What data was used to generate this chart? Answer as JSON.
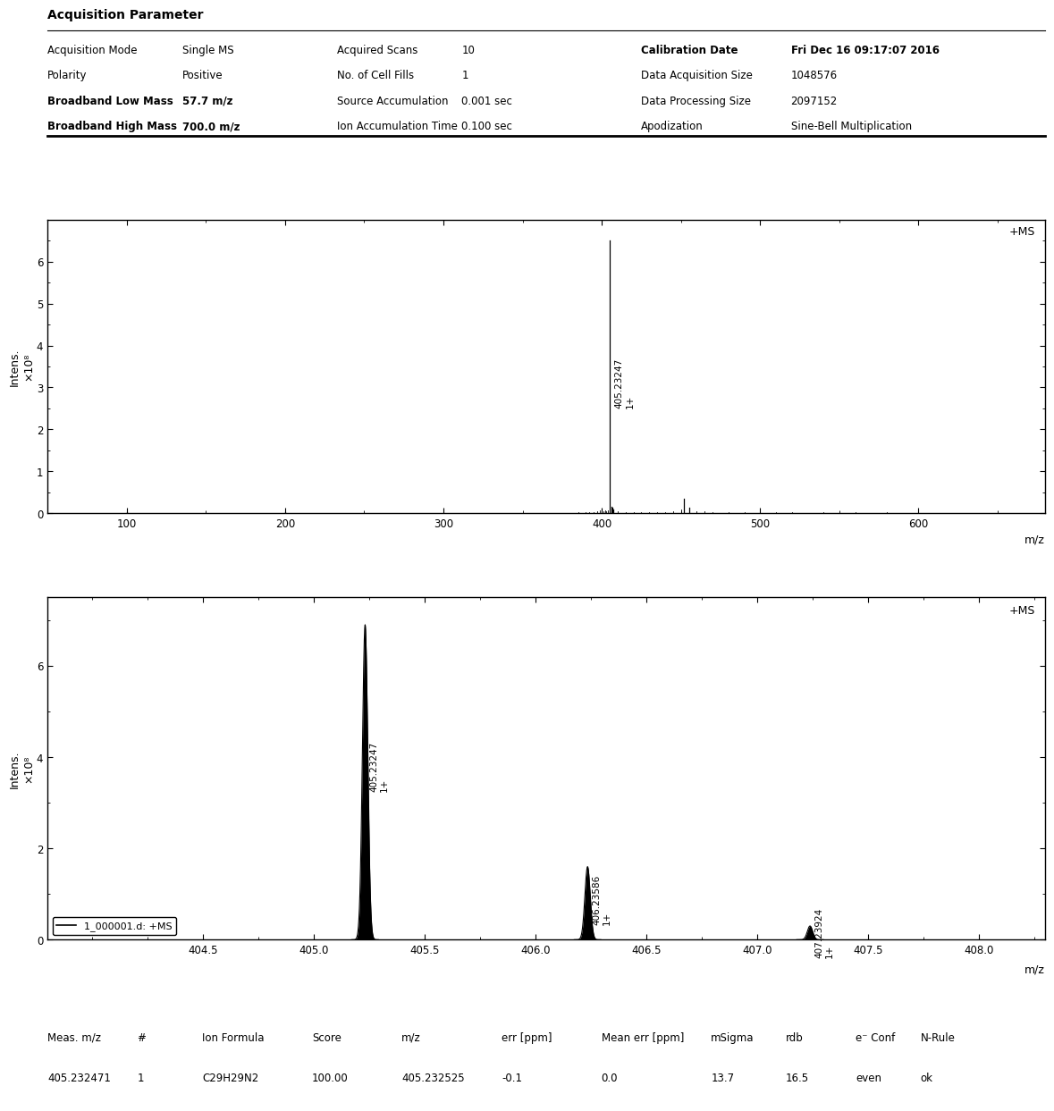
{
  "title": "Acquisition Parameter",
  "params": {
    "col1": [
      [
        "Acquisition Mode",
        "Single MS"
      ],
      [
        "Polarity",
        "Positive"
      ],
      [
        "Broadband Low Mass",
        "57.7 m/z"
      ],
      [
        "Broadband High Mass",
        "700.0 m/z"
      ]
    ],
    "col2": [
      [
        "Acquired Scans",
        "10"
      ],
      [
        "No. of Cell Fills",
        "1"
      ],
      [
        "Source Accumulation",
        "0.001 sec"
      ],
      [
        "Ion Accumulation Time",
        "0.100 sec"
      ]
    ],
    "col3": [
      [
        "Calibration Date",
        "Fri Dec 16 09:17:07 2016"
      ],
      [
        "Data Acquisition Size",
        "1048576"
      ],
      [
        "Data Processing Size",
        "2097152"
      ],
      [
        "Apodization",
        "Sine-Bell Multiplication"
      ]
    ]
  },
  "plot1": {
    "xlabel": "m/z",
    "xlim": [
      50,
      680
    ],
    "ylim": [
      0,
      7.0
    ],
    "yticks": [
      0,
      1,
      2,
      3,
      4,
      5,
      6
    ],
    "xticks": [
      100,
      200,
      300,
      400,
      500,
      600
    ],
    "label": "+MS",
    "peaks": [
      {
        "mz": 405.23247,
        "intensity": 6.5,
        "label": "405.23247 1+"
      },
      {
        "mz": 406.0,
        "intensity": 0.15,
        "label": null
      },
      {
        "mz": 406.5,
        "intensity": 0.12,
        "label": null
      },
      {
        "mz": 407.0,
        "intensity": 0.08,
        "label": null
      },
      {
        "mz": 452.0,
        "intensity": 0.35,
        "label": null
      },
      {
        "mz": 455.0,
        "intensity": 0.12,
        "label": null
      },
      {
        "mz": 200.0,
        "intensity": 0.03,
        "label": null
      },
      {
        "mz": 100.0,
        "intensity": 0.02,
        "label": null
      }
    ],
    "noise_peaks": [
      [
        60,
        0.01
      ],
      [
        80,
        0.01
      ],
      [
        120,
        0.01
      ],
      [
        150,
        0.01
      ],
      [
        180,
        0.01
      ],
      [
        220,
        0.01
      ],
      [
        260,
        0.01
      ],
      [
        300,
        0.01
      ],
      [
        320,
        0.01
      ],
      [
        350,
        0.01
      ],
      [
        370,
        0.01
      ],
      [
        380,
        0.01
      ],
      [
        385,
        0.02
      ],
      [
        390,
        0.03
      ],
      [
        392,
        0.02
      ],
      [
        395,
        0.03
      ],
      [
        397,
        0.04
      ],
      [
        399,
        0.06
      ],
      [
        400,
        0.08
      ],
      [
        401,
        0.05
      ],
      [
        402,
        0.06
      ],
      [
        403,
        0.05
      ],
      [
        404,
        0.07
      ],
      [
        410,
        0.04
      ],
      [
        415,
        0.03
      ],
      [
        420,
        0.03
      ],
      [
        425,
        0.02
      ],
      [
        430,
        0.02
      ],
      [
        435,
        0.02
      ],
      [
        440,
        0.03
      ],
      [
        445,
        0.05
      ],
      [
        450,
        0.08
      ],
      [
        460,
        0.05
      ],
      [
        465,
        0.04
      ],
      [
        470,
        0.03
      ],
      [
        480,
        0.02
      ],
      [
        490,
        0.02
      ],
      [
        500,
        0.02
      ],
      [
        510,
        0.02
      ],
      [
        520,
        0.02
      ],
      [
        540,
        0.02
      ],
      [
        560,
        0.02
      ],
      [
        580,
        0.02
      ],
      [
        600,
        0.01
      ],
      [
        620,
        0.01
      ],
      [
        640,
        0.01
      ]
    ]
  },
  "plot2": {
    "xlabel": "m/z",
    "xlim": [
      403.8,
      408.3
    ],
    "ylim": [
      0,
      7.5
    ],
    "yticks": [
      0,
      2,
      4,
      6
    ],
    "xticks": [
      404.5,
      405.0,
      405.5,
      406.0,
      406.5,
      407.0,
      407.5,
      408.0
    ],
    "label": "+MS",
    "legend": "1_000001.d: +MS",
    "peaks": [
      {
        "mz": 405.23247,
        "intensity": 6.9,
        "label": "405.23247 1+"
      },
      {
        "mz": 406.23586,
        "intensity": 1.6,
        "label": "406.23586 1+"
      },
      {
        "mz": 407.23924,
        "intensity": 0.3,
        "label": "407.23924 1+"
      }
    ],
    "noise_peaks": [
      [
        404.0,
        0.01
      ],
      [
        404.2,
        0.01
      ],
      [
        404.5,
        0.01
      ],
      [
        405.0,
        0.01
      ],
      [
        405.5,
        0.01
      ],
      [
        406.0,
        0.01
      ],
      [
        407.0,
        0.01
      ],
      [
        407.8,
        0.01
      ],
      [
        408.0,
        0.01
      ]
    ]
  },
  "table": {
    "headers": [
      "Meas. m/z",
      "#",
      "Ion Formula",
      "Score",
      "m/z",
      "err [ppm]",
      "Mean err [ppm]",
      "mSigma",
      "rdb",
      "e⁻ Conf",
      "N-Rule"
    ],
    "row": [
      "405.232471",
      "1",
      "C29H29N2",
      "100.00",
      "405.232525",
      "-0.1",
      "0.0",
      "13.7",
      "16.5",
      "even",
      "ok"
    ]
  },
  "bg_color": "#ffffff",
  "text_color": "#000000"
}
